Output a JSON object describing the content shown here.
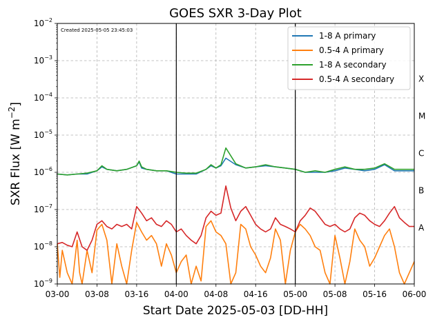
{
  "chart_data": {
    "type": "line",
    "title": "GOES SXR 3-Day Plot",
    "created_note": "Created 2025-05-05 23:45:03",
    "xlabel": "Start Date 2025-05-03 [DD-HH]",
    "ylabel_main": "SXR Flux [W m",
    "ylabel_sup": "−2",
    "ylabel_close": "]",
    "x_range_hours": [
      0,
      72
    ],
    "x_tick_hours": [
      0,
      8,
      16,
      24,
      32,
      40,
      48,
      56,
      64,
      72
    ],
    "x_tick_labels": [
      "03-00",
      "03-08",
      "03-16",
      "04-00",
      "04-08",
      "04-16",
      "05-00",
      "05-08",
      "05-16",
      "06-00"
    ],
    "y_scale": "log",
    "ylim": [
      1e-09,
      0.01
    ],
    "y_tick_exponents": [
      -9,
      -8,
      -7,
      -6,
      -5,
      -4,
      -3,
      -2
    ],
    "day_boundaries_hours": [
      24,
      48
    ],
    "grid": true,
    "legend_position": "top-right",
    "flare_classes": [
      {
        "label": "X",
        "flux": 0.00032
      },
      {
        "label": "M",
        "flux": 3.2e-05
      },
      {
        "label": "C",
        "flux": 3.2e-06
      },
      {
        "label": "B",
        "flux": 3.2e-07
      },
      {
        "label": "A",
        "flux": 3.2e-08
      }
    ],
    "series": [
      {
        "name": "1-8 A primary",
        "color": "#1f77b4",
        "x": [
          0,
          2,
          4,
          6,
          8,
          9,
          10,
          12,
          14,
          16,
          16.5,
          17,
          18,
          20,
          22,
          24,
          26,
          28,
          30,
          31,
          32,
          33,
          34,
          36,
          38,
          40,
          42,
          44,
          46,
          48,
          50,
          52,
          54,
          56,
          58,
          60,
          62,
          64,
          66,
          68,
          70,
          72
        ],
        "y": [
          9e-07,
          8.5e-07,
          9e-07,
          9e-07,
          1.1e-06,
          1.4e-06,
          1.2e-06,
          1.1e-06,
          1.2e-06,
          1.5e-06,
          1.9e-06,
          1.3e-06,
          1.2e-06,
          1.1e-06,
          1.1e-06,
          9e-07,
          9e-07,
          9e-07,
          1.2e-06,
          1.5e-06,
          1.3e-06,
          1.5e-06,
          2.4e-06,
          1.6e-06,
          1.3e-06,
          1.4e-06,
          1.5e-06,
          1.4e-06,
          1.3e-06,
          1.2e-06,
          1e-06,
          1e-06,
          1e-06,
          1.1e-06,
          1.3e-06,
          1.2e-06,
          1.1e-06,
          1.2e-06,
          1.6e-06,
          1.1e-06,
          1.1e-06,
          1.1e-06
        ]
      },
      {
        "name": "0.5-4 A primary",
        "color": "#ff7f0e",
        "x": [
          0,
          0.5,
          1,
          2,
          3,
          4,
          4.5,
          5,
          6,
          7,
          8,
          9,
          10,
          11,
          12,
          13,
          14,
          15,
          16,
          17,
          18,
          19,
          20,
          21,
          22,
          23,
          24,
          25,
          26,
          27,
          28,
          29,
          30,
          31,
          32,
          33,
          34,
          35,
          36,
          37,
          38,
          39,
          40,
          41,
          42,
          43,
          44,
          45,
          46,
          47,
          48,
          49,
          50,
          51,
          52,
          53,
          54,
          55,
          56,
          57,
          58,
          59,
          60,
          61,
          62,
          63,
          64,
          65,
          66,
          67,
          68,
          69,
          70,
          71,
          72
        ],
        "y": [
          1.2e-08,
          1.5e-09,
          8e-09,
          2e-09,
          1e-09,
          1.5e-08,
          2e-09,
          1e-09,
          8e-09,
          2e-09,
          2.8e-08,
          4e-08,
          1.5e-08,
          1e-09,
          1.2e-08,
          3e-09,
          1e-09,
          8e-09,
          4.5e-08,
          2.5e-08,
          1.5e-08,
          2e-08,
          1.2e-08,
          3e-09,
          1.2e-08,
          6e-09,
          2e-09,
          4e-09,
          6e-09,
          1e-09,
          3e-09,
          1.2e-09,
          3.5e-08,
          5e-08,
          2.5e-08,
          2e-08,
          1.2e-08,
          1e-09,
          2e-09,
          4e-08,
          3e-08,
          1e-08,
          6e-09,
          3e-09,
          2e-09,
          5e-09,
          3e-08,
          1.5e-08,
          1e-09,
          8e-09,
          2.5e-08,
          4e-08,
          3e-08,
          2e-08,
          1e-08,
          8e-09,
          2e-09,
          1e-09,
          2e-08,
          5e-09,
          1e-09,
          4e-09,
          3e-08,
          1.5e-08,
          1e-08,
          3e-09,
          5e-09,
          1e-08,
          2e-08,
          3e-08,
          1e-08,
          2e-09,
          1e-09,
          2e-09,
          4e-09
        ]
      },
      {
        "name": "1-8 A secondary",
        "color": "#2ca02c",
        "x": [
          0,
          2,
          4,
          6,
          8,
          9,
          10,
          12,
          14,
          16,
          16.5,
          17,
          18,
          20,
          22,
          24,
          26,
          28,
          30,
          31,
          32,
          33,
          34,
          36,
          38,
          40,
          42,
          44,
          46,
          48,
          50,
          52,
          54,
          56,
          58,
          60,
          62,
          64,
          66,
          68,
          70,
          72
        ],
        "y": [
          9e-07,
          8.5e-07,
          9e-07,
          9.5e-07,
          1.1e-06,
          1.5e-06,
          1.2e-06,
          1.1e-06,
          1.2e-06,
          1.5e-06,
          2e-06,
          1.4e-06,
          1.2e-06,
          1.1e-06,
          1.1e-06,
          1e-06,
          9.5e-07,
          9.5e-07,
          1.2e-06,
          1.6e-06,
          1.3e-06,
          1.6e-06,
          4.5e-06,
          1.7e-06,
          1.3e-06,
          1.4e-06,
          1.6e-06,
          1.4e-06,
          1.3e-06,
          1.2e-06,
          1e-06,
          1.1e-06,
          1e-06,
          1.2e-06,
          1.4e-06,
          1.2e-06,
          1.2e-06,
          1.3e-06,
          1.7e-06,
          1.2e-06,
          1.2e-06,
          1.2e-06
        ]
      },
      {
        "name": "0.5-4 A secondary",
        "color": "#d62728",
        "x": [
          0,
          1,
          2,
          3,
          4,
          5,
          6,
          7,
          8,
          9,
          10,
          11,
          12,
          13,
          14,
          15,
          16,
          17,
          18,
          19,
          20,
          21,
          22,
          23,
          24,
          25,
          26,
          27,
          28,
          29,
          30,
          31,
          32,
          33,
          34,
          35,
          36,
          37,
          38,
          39,
          40,
          41,
          42,
          43,
          44,
          45,
          46,
          47,
          48,
          49,
          50,
          51,
          52,
          53,
          54,
          55,
          56,
          57,
          58,
          59,
          60,
          61,
          62,
          63,
          64,
          65,
          66,
          67,
          68,
          69,
          70,
          71,
          72
        ],
        "y": [
          1.2e-08,
          1.3e-08,
          1.1e-08,
          1e-08,
          2.5e-08,
          1e-08,
          8e-09,
          1.5e-08,
          4e-08,
          5e-08,
          3.5e-08,
          3e-08,
          4e-08,
          3.5e-08,
          4e-08,
          3e-08,
          1.2e-07,
          8e-08,
          5e-08,
          6e-08,
          4e-08,
          3.5e-08,
          5e-08,
          4e-08,
          2.5e-08,
          3e-08,
          2e-08,
          1.5e-08,
          1.2e-08,
          2e-08,
          6e-08,
          9e-08,
          7e-08,
          8e-08,
          4.3e-07,
          1.1e-07,
          5e-08,
          9e-08,
          1.2e-07,
          7e-08,
          4e-08,
          3e-08,
          2.5e-08,
          3e-08,
          6e-08,
          4e-08,
          3.5e-08,
          3e-08,
          2.5e-08,
          5e-08,
          7e-08,
          1.1e-07,
          9e-08,
          6e-08,
          4e-08,
          3.5e-08,
          4e-08,
          3e-08,
          2.5e-08,
          3e-08,
          6e-08,
          8e-08,
          7e-08,
          5e-08,
          4e-08,
          3.5e-08,
          5e-08,
          8e-08,
          1.2e-07,
          6e-08,
          4.5e-08,
          3.5e-08,
          3.5e-08
        ]
      }
    ]
  }
}
